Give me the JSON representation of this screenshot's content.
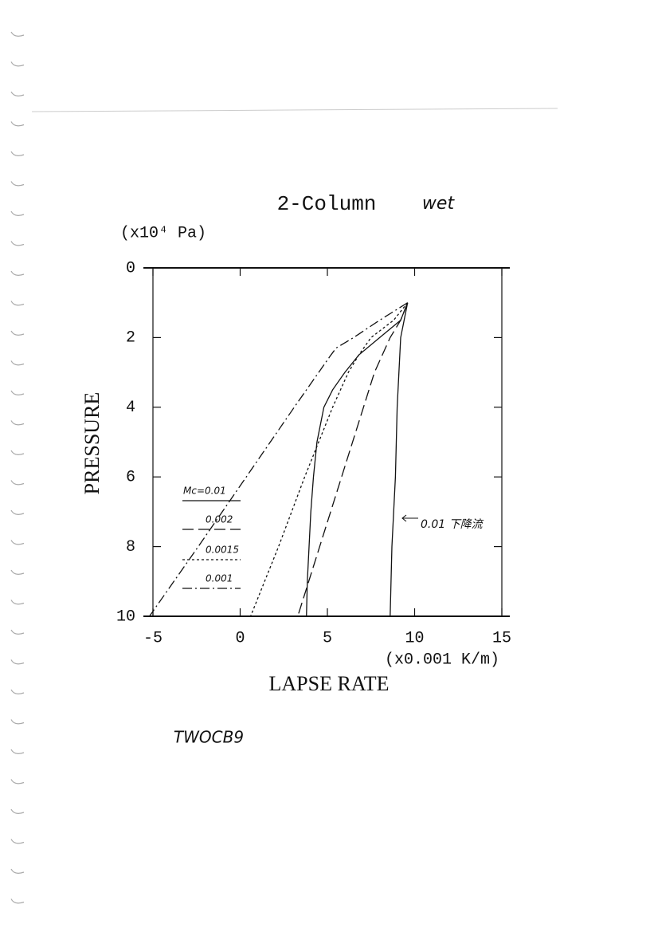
{
  "chart_data": {
    "type": "line",
    "title": "2-Column",
    "title_note": "wet",
    "y_label": "PRESSURE",
    "y_unit": "(x10⁴ Pa)",
    "x_label": "LAPSE RATE",
    "x_unit": "(x0.001 K/m)",
    "footnote": "TWOCB9",
    "xlim": [
      -5,
      15
    ],
    "xticks": [
      -5,
      0,
      5,
      10,
      15
    ],
    "ylim": [
      10,
      0
    ],
    "yticks": [
      0,
      2,
      4,
      6,
      8,
      10
    ],
    "series": [
      {
        "name": "Mc=0.01",
        "color": "#111111",
        "dash": "solid",
        "values": [
          1,
          1.5,
          2,
          2.5,
          3,
          3.5,
          4,
          5,
          6,
          7,
          8,
          9,
          10
        ],
        "x": [
          9.6,
          9.2,
          8.0,
          6.8,
          6.0,
          5.3,
          4.8,
          4.4,
          4.2,
          4.05,
          3.95,
          3.85,
          3.8
        ]
      },
      {
        "name": "0.002",
        "color": "#111111",
        "dash": "longdash",
        "values": [
          1,
          1.5,
          2,
          3,
          10
        ],
        "x": [
          9.6,
          9.2,
          8.6,
          7.7,
          3.3
        ]
      },
      {
        "name": "0.0015",
        "color": "#111111",
        "dash": "dotted",
        "values": [
          1,
          1.5,
          2,
          2.5,
          3,
          4,
          6,
          8,
          10
        ],
        "x": [
          9.6,
          8.8,
          7.5,
          6.8,
          6.2,
          5.3,
          3.7,
          2.2,
          0.6
        ]
      },
      {
        "name": "0.001",
        "color": "#111111",
        "dash": "dashdot",
        "values": [
          1,
          1.5,
          2,
          2.3,
          2.5,
          4,
          6,
          8,
          10
        ],
        "x": [
          9.6,
          8.0,
          6.5,
          5.5,
          5.2,
          3.1,
          0.35,
          -2.4,
          -5.2
        ]
      },
      {
        "name": "0.01 下降流",
        "color": "#111111",
        "dash": "solid",
        "values": [
          1,
          2,
          4,
          6,
          8,
          10
        ],
        "x": [
          9.6,
          9.2,
          9.0,
          8.9,
          8.7,
          8.6
        ]
      }
    ]
  }
}
